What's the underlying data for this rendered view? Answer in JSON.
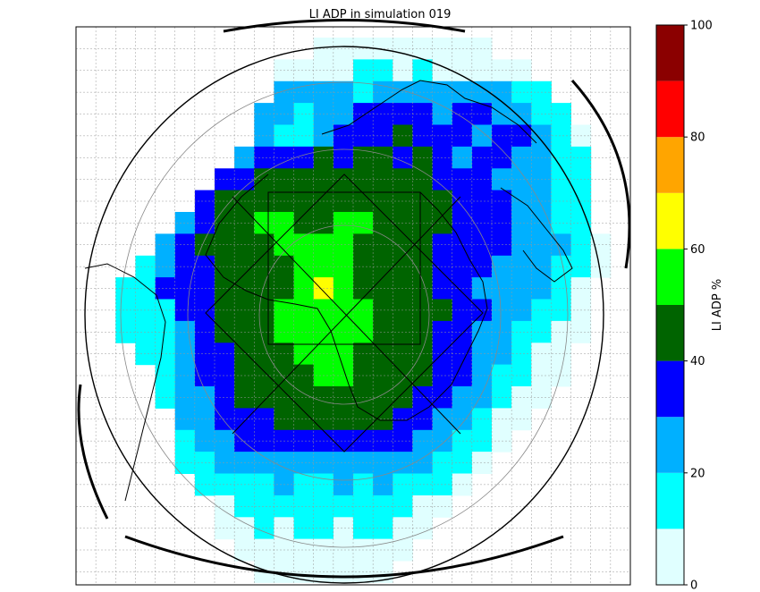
{
  "chart_data": {
    "type": "heatmap",
    "title": "LI ADP in simulation 019",
    "colorbar": {
      "label": "LI ADP %",
      "min": 0,
      "max": 100,
      "ticks": [
        "0",
        "20",
        "40",
        "60",
        "80",
        "100"
      ],
      "levels": [
        {
          "from": 0,
          "to": 10,
          "color": "#e0ffff"
        },
        {
          "from": 10,
          "to": 20,
          "color": "#00ffff"
        },
        {
          "from": 20,
          "to": 30,
          "color": "#00b0ff"
        },
        {
          "from": 30,
          "to": 40,
          "color": "#0000ff"
        },
        {
          "from": 40,
          "to": 50,
          "color": "#006400"
        },
        {
          "from": 50,
          "to": 60,
          "color": "#00ff00"
        },
        {
          "from": 60,
          "to": 70,
          "color": "#ffff00"
        },
        {
          "from": 70,
          "to": 80,
          "color": "#ffa500"
        },
        {
          "from": 80,
          "to": 90,
          "color": "#ff0000"
        },
        {
          "from": 90,
          "to": 100,
          "color": "#8b0000"
        }
      ]
    },
    "projection": "geostationary full-disk view centred on Africa",
    "grid": true,
    "grid_values": {
      "note": "approximate LI ADP % per coarse grid cell, rows top to bottom, columns left to right; null = no data",
      "rows": [
        [
          null,
          null,
          null,
          null,
          null,
          null,
          null,
          null,
          null,
          null,
          null,
          null,
          5,
          5,
          5,
          5,
          5,
          5,
          5,
          5,
          5,
          null,
          null,
          null,
          null,
          null,
          null,
          null
        ],
        [
          null,
          null,
          null,
          null,
          null,
          null,
          null,
          null,
          null,
          null,
          5,
          5,
          5,
          5,
          15,
          15,
          5,
          15,
          5,
          5,
          5,
          5,
          5,
          null,
          null,
          null,
          null,
          null
        ],
        [
          null,
          null,
          null,
          null,
          null,
          null,
          null,
          null,
          null,
          null,
          25,
          25,
          25,
          25,
          15,
          25,
          25,
          25,
          25,
          25,
          25,
          25,
          15,
          15,
          null,
          null,
          null,
          null
        ],
        [
          null,
          null,
          null,
          null,
          null,
          null,
          null,
          null,
          null,
          25,
          25,
          15,
          25,
          25,
          35,
          35,
          35,
          35,
          25,
          35,
          35,
          25,
          25,
          15,
          15,
          null,
          null,
          null
        ],
        [
          null,
          null,
          null,
          null,
          null,
          null,
          null,
          null,
          null,
          25,
          15,
          15,
          25,
          35,
          35,
          35,
          45,
          35,
          35,
          35,
          25,
          35,
          35,
          25,
          15,
          5,
          null,
          null
        ],
        [
          null,
          null,
          null,
          null,
          null,
          null,
          null,
          null,
          25,
          35,
          35,
          35,
          45,
          35,
          45,
          45,
          35,
          45,
          35,
          25,
          35,
          35,
          25,
          25,
          15,
          15,
          null,
          null
        ],
        [
          null,
          null,
          null,
          null,
          null,
          null,
          null,
          35,
          35,
          45,
          45,
          45,
          45,
          45,
          45,
          45,
          45,
          45,
          35,
          35,
          35,
          25,
          25,
          25,
          15,
          15,
          null,
          null
        ],
        [
          null,
          null,
          null,
          null,
          null,
          null,
          35,
          45,
          45,
          45,
          45,
          45,
          45,
          45,
          45,
          45,
          45,
          45,
          45,
          35,
          35,
          35,
          25,
          25,
          15,
          15,
          null,
          null
        ],
        [
          null,
          null,
          null,
          null,
          null,
          25,
          35,
          45,
          45,
          55,
          55,
          45,
          45,
          55,
          55,
          45,
          45,
          45,
          45,
          35,
          35,
          35,
          25,
          25,
          15,
          15,
          null,
          null
        ],
        [
          null,
          null,
          null,
          null,
          25,
          35,
          45,
          45,
          45,
          45,
          55,
          55,
          55,
          55,
          45,
          45,
          45,
          45,
          35,
          35,
          35,
          35,
          25,
          25,
          25,
          15,
          5,
          null
        ],
        [
          null,
          null,
          null,
          15,
          25,
          35,
          35,
          45,
          45,
          45,
          45,
          55,
          55,
          55,
          45,
          45,
          45,
          45,
          35,
          35,
          35,
          25,
          25,
          25,
          15,
          15,
          5,
          null
        ],
        [
          null,
          null,
          15,
          15,
          35,
          35,
          35,
          45,
          45,
          45,
          45,
          55,
          65,
          55,
          45,
          45,
          45,
          45,
          35,
          35,
          25,
          25,
          25,
          25,
          15,
          5,
          null,
          null
        ],
        [
          null,
          null,
          15,
          15,
          15,
          35,
          35,
          45,
          45,
          45,
          55,
          55,
          55,
          55,
          55,
          45,
          45,
          45,
          45,
          35,
          35,
          25,
          25,
          15,
          15,
          5,
          null,
          null
        ],
        [
          null,
          null,
          15,
          15,
          15,
          25,
          35,
          45,
          45,
          45,
          55,
          55,
          55,
          55,
          55,
          45,
          45,
          45,
          35,
          35,
          25,
          25,
          15,
          15,
          5,
          5,
          null,
          null
        ],
        [
          null,
          null,
          null,
          15,
          15,
          25,
          35,
          35,
          45,
          45,
          45,
          55,
          55,
          55,
          45,
          45,
          45,
          45,
          35,
          35,
          25,
          25,
          15,
          5,
          5,
          null,
          null,
          null
        ],
        [
          null,
          null,
          null,
          null,
          15,
          25,
          35,
          35,
          45,
          45,
          45,
          45,
          55,
          55,
          45,
          45,
          45,
          45,
          35,
          35,
          25,
          15,
          15,
          5,
          5,
          null,
          null,
          null
        ],
        [
          null,
          null,
          null,
          null,
          15,
          25,
          25,
          35,
          45,
          45,
          45,
          45,
          45,
          45,
          45,
          45,
          45,
          35,
          35,
          25,
          25,
          15,
          5,
          5,
          null,
          null,
          null,
          null
        ],
        [
          null,
          null,
          null,
          null,
          null,
          25,
          25,
          35,
          35,
          35,
          45,
          45,
          45,
          45,
          45,
          45,
          35,
          35,
          25,
          25,
          15,
          5,
          5,
          null,
          null,
          null,
          null,
          null
        ],
        [
          null,
          null,
          null,
          null,
          null,
          15,
          25,
          25,
          35,
          35,
          35,
          35,
          35,
          35,
          35,
          35,
          35,
          25,
          25,
          15,
          15,
          5,
          null,
          null,
          null,
          null,
          null,
          null
        ],
        [
          null,
          null,
          null,
          null,
          null,
          15,
          15,
          25,
          25,
          25,
          25,
          25,
          25,
          25,
          25,
          25,
          25,
          25,
          15,
          15,
          5,
          null,
          null,
          null,
          null,
          null,
          null,
          null
        ],
        [
          null,
          null,
          null,
          null,
          null,
          null,
          15,
          15,
          15,
          15,
          25,
          15,
          15,
          25,
          15,
          25,
          15,
          15,
          15,
          5,
          null,
          null,
          null,
          null,
          null,
          null,
          null,
          null
        ],
        [
          null,
          null,
          null,
          null,
          null,
          null,
          null,
          5,
          15,
          15,
          15,
          15,
          15,
          15,
          15,
          15,
          15,
          5,
          5,
          null,
          null,
          null,
          null,
          null,
          null,
          null,
          null,
          null
        ],
        [
          null,
          null,
          null,
          null,
          null,
          null,
          null,
          5,
          5,
          15,
          5,
          15,
          15,
          5,
          15,
          15,
          5,
          5,
          null,
          null,
          null,
          null,
          null,
          null,
          null,
          null,
          null,
          null
        ],
        [
          null,
          null,
          null,
          null,
          null,
          null,
          null,
          null,
          5,
          5,
          5,
          5,
          5,
          5,
          5,
          5,
          5,
          null,
          null,
          null,
          null,
          null,
          null,
          null,
          null,
          null,
          null,
          null
        ],
        [
          null,
          null,
          null,
          null,
          null,
          null,
          null,
          null,
          null,
          5,
          5,
          5,
          5,
          5,
          5,
          5,
          null,
          null,
          null,
          null,
          null,
          null,
          null,
          null,
          null,
          null,
          null,
          null
        ]
      ]
    }
  }
}
